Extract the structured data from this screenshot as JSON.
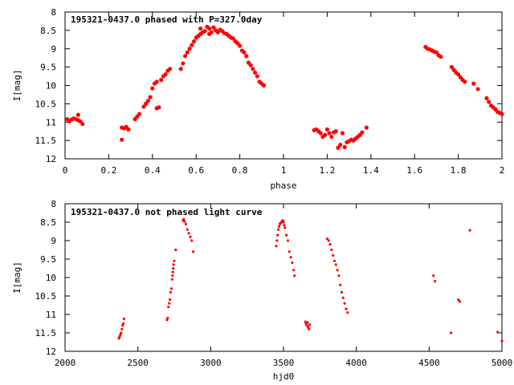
{
  "colors": {
    "points": "#ff0000",
    "axes": "#000000",
    "background": "#ffffff"
  },
  "chart_data": [
    {
      "type": "scatter",
      "title": "195321-0437.0 phased with P=327.0day",
      "xlabel": "phase",
      "ylabel": "I[mag]",
      "xlim": [
        0,
        2
      ],
      "ylim": [
        12,
        8
      ],
      "y_reversed": true,
      "grid": false,
      "x_ticks": [
        "0",
        "0.2",
        "0.4",
        "0.6",
        "0.8",
        "1",
        "1.2",
        "1.4",
        "1.6",
        "1.8",
        "2"
      ],
      "x_tick_values": [
        0,
        0.2,
        0.4,
        0.6,
        0.8,
        1.0,
        1.2,
        1.4,
        1.6,
        1.8,
        2.0
      ],
      "y_ticks": [
        "8",
        "8.5",
        "9",
        "9.5",
        "10",
        "10.5",
        "11",
        "11.5",
        "12"
      ],
      "y_tick_values": [
        8,
        8.5,
        9,
        9.5,
        10,
        10.5,
        11,
        11.5,
        12
      ],
      "marker": "filled-circle",
      "points": [
        [
          0.01,
          10.92
        ],
        [
          0.02,
          10.98
        ],
        [
          0.03,
          10.93
        ],
        [
          0.04,
          10.9
        ],
        [
          0.05,
          10.92
        ],
        [
          0.06,
          10.95
        ],
        [
          0.06,
          10.8
        ],
        [
          0.07,
          10.98
        ],
        [
          0.08,
          11.05
        ],
        [
          0.26,
          11.15
        ],
        [
          0.26,
          11.48
        ],
        [
          0.27,
          11.17
        ],
        [
          0.28,
          11.13
        ],
        [
          0.29,
          11.2
        ],
        [
          0.32,
          10.92
        ],
        [
          0.33,
          10.85
        ],
        [
          0.34,
          10.78
        ],
        [
          0.36,
          10.58
        ],
        [
          0.37,
          10.5
        ],
        [
          0.38,
          10.42
        ],
        [
          0.39,
          10.32
        ],
        [
          0.4,
          10.08
        ],
        [
          0.41,
          9.95
        ],
        [
          0.42,
          9.9
        ],
        [
          0.42,
          10.62
        ],
        [
          0.43,
          10.6
        ],
        [
          0.44,
          9.85
        ],
        [
          0.45,
          9.75
        ],
        [
          0.46,
          9.7
        ],
        [
          0.47,
          9.6
        ],
        [
          0.48,
          9.55
        ],
        [
          0.53,
          9.55
        ],
        [
          0.54,
          9.4
        ],
        [
          0.55,
          9.2
        ],
        [
          0.56,
          9.1
        ],
        [
          0.57,
          9.0
        ],
        [
          0.58,
          8.9
        ],
        [
          0.59,
          8.8
        ],
        [
          0.6,
          8.7
        ],
        [
          0.61,
          8.65
        ],
        [
          0.62,
          8.6
        ],
        [
          0.62,
          8.45
        ],
        [
          0.63,
          8.55
        ],
        [
          0.64,
          8.52
        ],
        [
          0.65,
          8.4
        ],
        [
          0.66,
          8.45
        ],
        [
          0.66,
          8.6
        ],
        [
          0.67,
          8.55
        ],
        [
          0.68,
          8.42
        ],
        [
          0.69,
          8.5
        ],
        [
          0.7,
          8.55
        ],
        [
          0.71,
          8.48
        ],
        [
          0.72,
          8.52
        ],
        [
          0.73,
          8.58
        ],
        [
          0.74,
          8.6
        ],
        [
          0.75,
          8.65
        ],
        [
          0.76,
          8.7
        ],
        [
          0.77,
          8.72
        ],
        [
          0.78,
          8.8
        ],
        [
          0.79,
          8.85
        ],
        [
          0.8,
          8.92
        ],
        [
          0.81,
          9.05
        ],
        [
          0.82,
          9.1
        ],
        [
          0.83,
          9.2
        ],
        [
          0.84,
          9.38
        ],
        [
          0.85,
          9.45
        ],
        [
          0.86,
          9.55
        ],
        [
          0.87,
          9.65
        ],
        [
          0.88,
          9.75
        ],
        [
          0.89,
          9.9
        ],
        [
          0.9,
          9.95
        ],
        [
          0.91,
          10.0
        ],
        [
          1.14,
          11.22
        ],
        [
          1.15,
          11.2
        ],
        [
          1.16,
          11.25
        ],
        [
          1.17,
          11.3
        ],
        [
          1.18,
          11.4
        ],
        [
          1.19,
          11.35
        ],
        [
          1.2,
          11.2
        ],
        [
          1.21,
          11.3
        ],
        [
          1.22,
          11.4
        ],
        [
          1.23,
          11.28
        ],
        [
          1.24,
          11.25
        ],
        [
          1.25,
          11.7
        ],
        [
          1.26,
          11.62
        ],
        [
          1.27,
          11.3
        ],
        [
          1.28,
          11.68
        ],
        [
          1.29,
          11.55
        ],
        [
          1.3,
          11.52
        ],
        [
          1.31,
          11.48
        ],
        [
          1.32,
          11.5
        ],
        [
          1.33,
          11.45
        ],
        [
          1.34,
          11.4
        ],
        [
          1.35,
          11.35
        ],
        [
          1.36,
          11.28
        ],
        [
          1.38,
          11.15
        ],
        [
          1.65,
          8.95
        ],
        [
          1.66,
          9.0
        ],
        [
          1.67,
          9.02
        ],
        [
          1.68,
          9.05
        ],
        [
          1.69,
          9.08
        ],
        [
          1.7,
          9.1
        ],
        [
          1.71,
          9.18
        ],
        [
          1.72,
          9.22
        ],
        [
          1.77,
          9.5
        ],
        [
          1.78,
          9.58
        ],
        [
          1.79,
          9.65
        ],
        [
          1.8,
          9.7
        ],
        [
          1.81,
          9.78
        ],
        [
          1.82,
          9.85
        ],
        [
          1.83,
          9.9
        ],
        [
          1.87,
          9.95
        ],
        [
          1.89,
          10.1
        ],
        [
          1.93,
          10.35
        ],
        [
          1.94,
          10.45
        ],
        [
          1.95,
          10.55
        ],
        [
          1.96,
          10.6
        ],
        [
          1.97,
          10.65
        ],
        [
          1.98,
          10.72
        ],
        [
          1.99,
          10.75
        ],
        [
          2.0,
          10.78
        ]
      ]
    },
    {
      "type": "scatter",
      "title": "195321-0437.0 not phased light curve",
      "xlabel": "hjd0",
      "ylabel": "I[mag]",
      "xlim": [
        2000,
        5000
      ],
      "ylim": [
        12,
        8
      ],
      "y_reversed": true,
      "grid": false,
      "x_ticks": [
        "2000",
        "2500",
        "3000",
        "3500",
        "4000",
        "4500",
        "5000"
      ],
      "x_tick_values": [
        2000,
        2500,
        3000,
        3500,
        4000,
        4500,
        5000
      ],
      "y_ticks": [
        "8",
        "8.5",
        "9",
        "9.5",
        "10",
        "10.5",
        "11",
        "11.5",
        "12"
      ],
      "y_tick_values": [
        8,
        8.5,
        9,
        9.5,
        10,
        10.5,
        11,
        11.5,
        12
      ],
      "marker": "small-dot",
      "points": [
        [
          2370,
          11.65
        ],
        [
          2375,
          11.6
        ],
        [
          2380,
          11.55
        ],
        [
          2385,
          11.5
        ],
        [
          2390,
          11.4
        ],
        [
          2395,
          11.3
        ],
        [
          2400,
          11.25
        ],
        [
          2405,
          11.12
        ],
        [
          2700,
          11.15
        ],
        [
          2705,
          11.1
        ],
        [
          2710,
          10.8
        ],
        [
          2715,
          10.7
        ],
        [
          2720,
          10.6
        ],
        [
          2725,
          10.4
        ],
        [
          2730,
          10.3
        ],
        [
          2735,
          10.05
        ],
        [
          2738,
          9.95
        ],
        [
          2740,
          9.85
        ],
        [
          2742,
          9.75
        ],
        [
          2745,
          9.65
        ],
        [
          2750,
          9.55
        ],
        [
          2760,
          9.25
        ],
        [
          2810,
          8.45
        ],
        [
          2815,
          8.42
        ],
        [
          2820,
          8.48
        ],
        [
          2830,
          8.55
        ],
        [
          2840,
          8.7
        ],
        [
          2850,
          8.8
        ],
        [
          2860,
          8.9
        ],
        [
          2870,
          9.0
        ],
        [
          2880,
          9.3
        ],
        [
          3450,
          9.15
        ],
        [
          3455,
          9.0
        ],
        [
          3460,
          8.85
        ],
        [
          3465,
          8.7
        ],
        [
          3470,
          8.62
        ],
        [
          3475,
          8.55
        ],
        [
          3480,
          8.52
        ],
        [
          3485,
          8.5
        ],
        [
          3490,
          8.48
        ],
        [
          3495,
          8.45
        ],
        [
          3500,
          8.5
        ],
        [
          3505,
          8.58
        ],
        [
          3510,
          8.65
        ],
        [
          3520,
          8.85
        ],
        [
          3530,
          9.0
        ],
        [
          3540,
          9.3
        ],
        [
          3550,
          9.45
        ],
        [
          3560,
          9.6
        ],
        [
          3570,
          9.8
        ],
        [
          3575,
          9.95
        ],
        [
          3650,
          11.2
        ],
        [
          3655,
          11.25
        ],
        [
          3660,
          11.3
        ],
        [
          3665,
          11.22
        ],
        [
          3670,
          11.35
        ],
        [
          3675,
          11.4
        ],
        [
          3680,
          11.28
        ],
        [
          3800,
          8.95
        ],
        [
          3810,
          9.0
        ],
        [
          3820,
          9.1
        ],
        [
          3830,
          9.25
        ],
        [
          3840,
          9.4
        ],
        [
          3850,
          9.55
        ],
        [
          3860,
          9.65
        ],
        [
          3870,
          9.8
        ],
        [
          3880,
          9.95
        ],
        [
          3890,
          10.2
        ],
        [
          3900,
          10.4
        ],
        [
          3910,
          10.55
        ],
        [
          3920,
          10.7
        ],
        [
          3930,
          10.85
        ],
        [
          3940,
          10.95
        ],
        [
          4530,
          9.95
        ],
        [
          4540,
          10.1
        ],
        [
          4650,
          11.5
        ],
        [
          4700,
          10.6
        ],
        [
          4710,
          10.65
        ],
        [
          4780,
          8.72
        ],
        [
          4970,
          11.48
        ],
        [
          5000,
          11.72
        ]
      ]
    }
  ]
}
